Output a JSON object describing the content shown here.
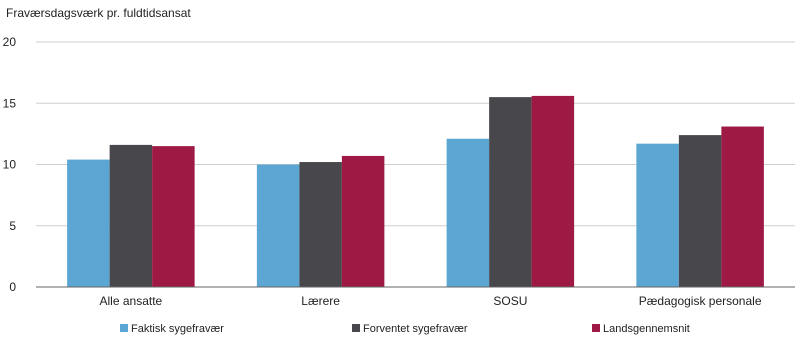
{
  "chart_data": {
    "type": "bar",
    "title": "",
    "ylabel": "Fraværsdagsværk pr. fuldtidsansat",
    "xlabel": "",
    "categories": [
      "Alle ansatte",
      "Lærere",
      "SOSU",
      "Pædagogisk personale"
    ],
    "ylim": [
      0,
      20
    ],
    "yticks": [
      0,
      5,
      10,
      15,
      20
    ],
    "grid": true,
    "legend_position": "bottom",
    "series": [
      {
        "name": "Faktisk sygefravær",
        "color": "#5ba6d3",
        "values": [
          10.4,
          10.0,
          12.1,
          11.7
        ]
      },
      {
        "name": "Forventet sygefravær",
        "color": "#48484c",
        "values": [
          11.6,
          10.2,
          15.5,
          12.4
        ]
      },
      {
        "name": "Landsgennemsnit",
        "color": "#9e1a44",
        "values": [
          11.5,
          10.7,
          15.6,
          13.1
        ]
      }
    ]
  }
}
